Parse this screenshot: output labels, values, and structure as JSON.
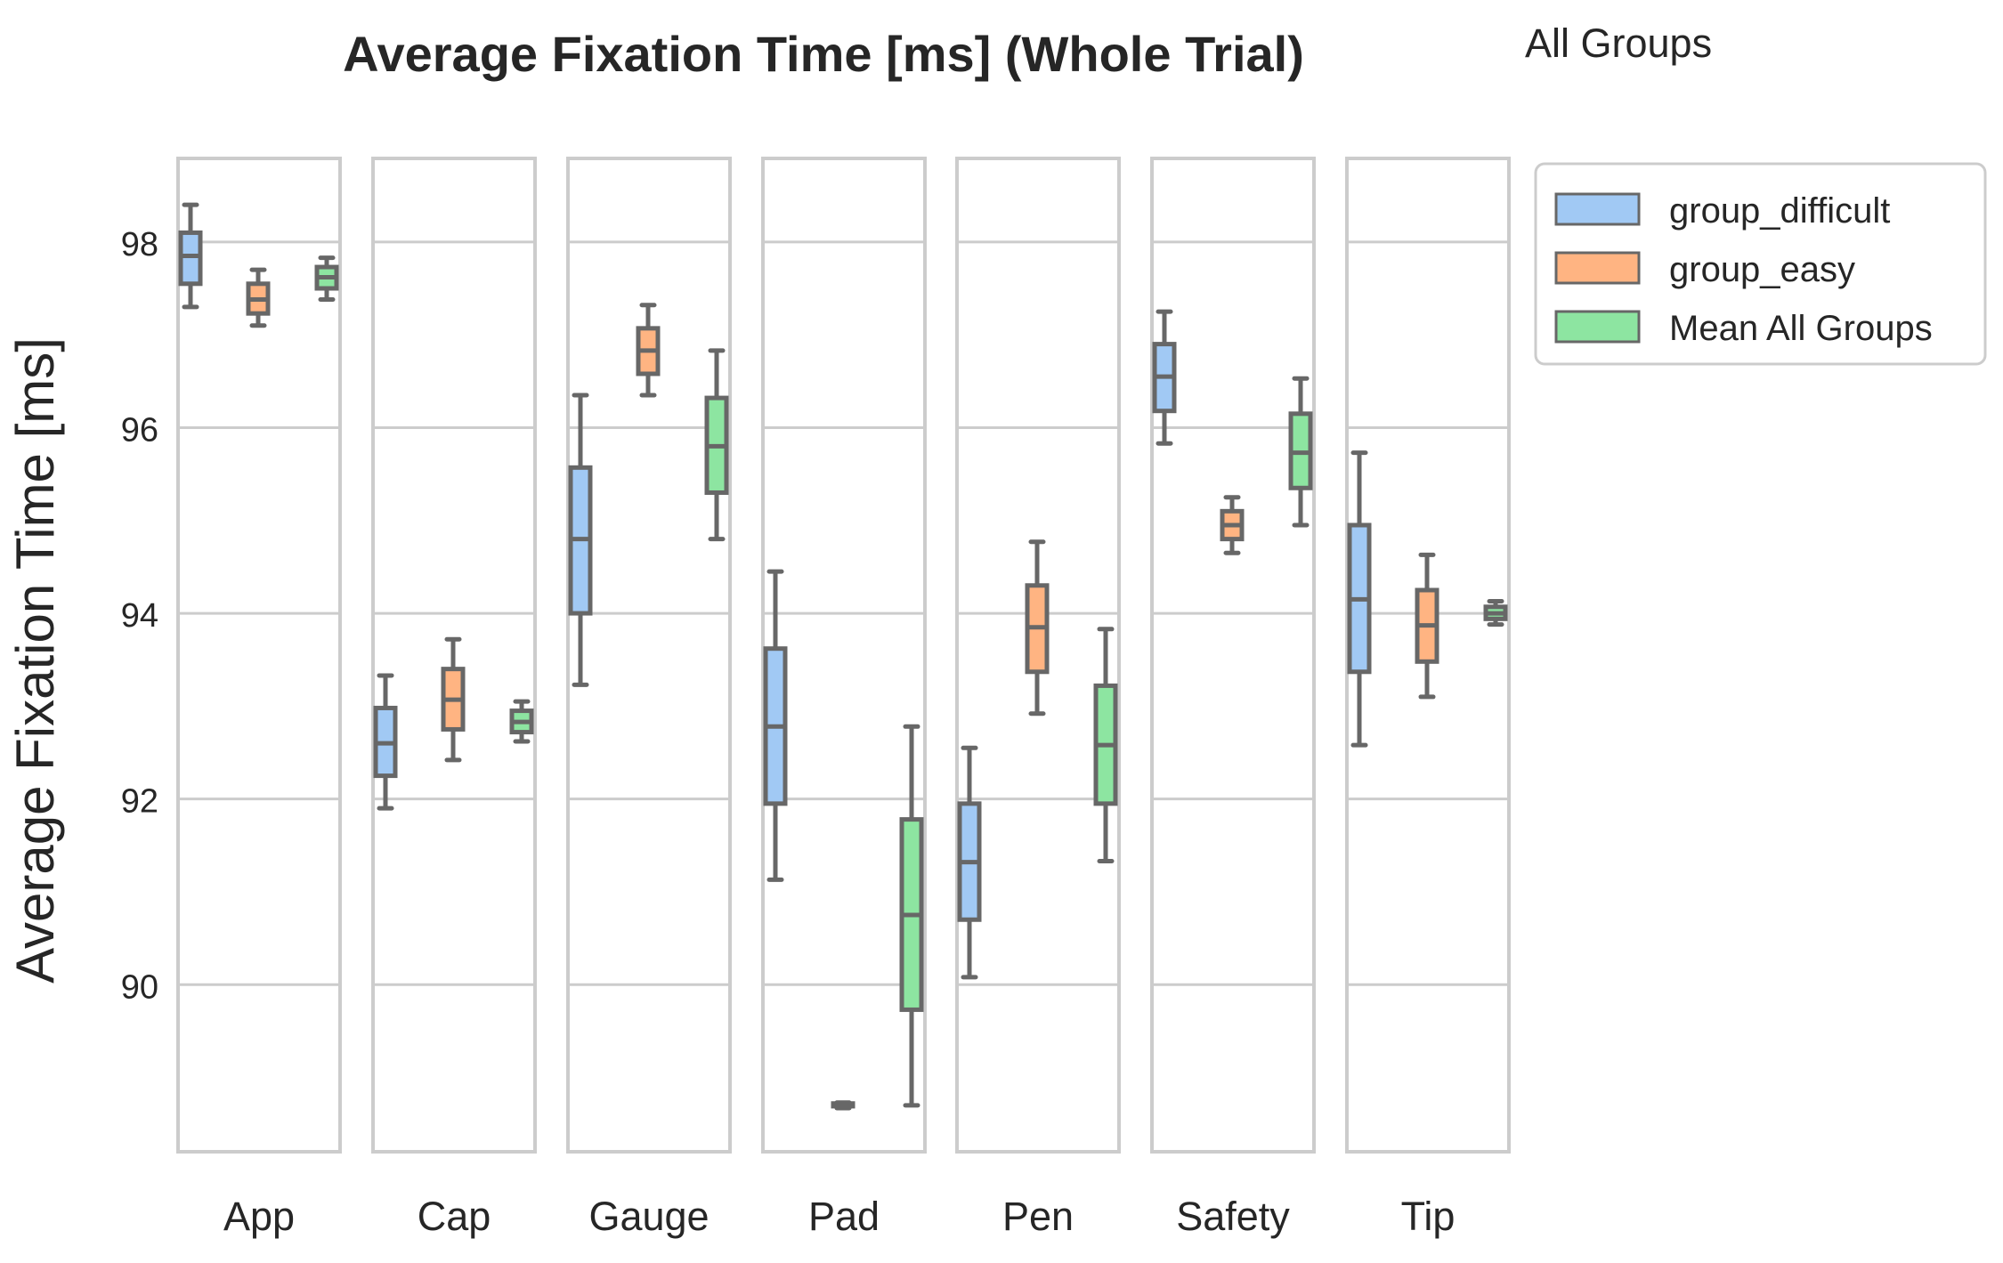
{
  "chart_data": {
    "type": "box",
    "title": "Average Fixation Time [ms] (Whole Trial)",
    "subtitle": "All Groups",
    "ylabel": "Average Fixation Time [ms]",
    "xlabel": "",
    "ylim": [
      88.2,
      98.9
    ],
    "yticks": [
      90,
      92,
      94,
      96,
      98
    ],
    "ytick_labels": [
      "90",
      "92",
      "94",
      "96",
      "98"
    ],
    "grid": true,
    "legend_position": "top-right",
    "facets": [
      "App",
      "Cap",
      "Gauge",
      "Pad",
      "Pen",
      "Safety",
      "Tip"
    ],
    "series": [
      {
        "name": "group_difficult",
        "color": "#a1c9f4",
        "boxes": [
          {
            "facet": "App",
            "whislo": 97.3,
            "q1": 97.55,
            "med": 97.85,
            "q3": 98.1,
            "whishi": 98.4
          },
          {
            "facet": "Cap",
            "whislo": 91.9,
            "q1": 92.25,
            "med": 92.6,
            "q3": 92.98,
            "whishi": 93.33
          },
          {
            "facet": "Gauge",
            "whislo": 93.23,
            "q1": 94.0,
            "med": 94.8,
            "q3": 95.57,
            "whishi": 96.35
          },
          {
            "facet": "Pad",
            "whislo": 91.13,
            "q1": 91.95,
            "med": 92.78,
            "q3": 93.62,
            "whishi": 94.45
          },
          {
            "facet": "Pen",
            "whislo": 90.08,
            "q1": 90.7,
            "med": 91.32,
            "q3": 91.95,
            "whishi": 92.55
          },
          {
            "facet": "Safety",
            "whislo": 95.83,
            "q1": 96.18,
            "med": 96.55,
            "q3": 96.9,
            "whishi": 97.25
          },
          {
            "facet": "Tip",
            "whislo": 92.58,
            "q1": 93.37,
            "med": 94.15,
            "q3": 94.95,
            "whishi": 95.73
          }
        ]
      },
      {
        "name": "group_easy",
        "color": "#ffb482",
        "boxes": [
          {
            "facet": "App",
            "whislo": 97.1,
            "q1": 97.23,
            "med": 97.38,
            "q3": 97.55,
            "whishi": 97.7
          },
          {
            "facet": "Cap",
            "whislo": 92.42,
            "q1": 92.75,
            "med": 93.07,
            "q3": 93.4,
            "whishi": 93.72
          },
          {
            "facet": "Gauge",
            "whislo": 96.35,
            "q1": 96.58,
            "med": 96.83,
            "q3": 97.07,
            "whishi": 97.32
          },
          {
            "facet": "Pad",
            "whislo": 88.67,
            "q1": 88.69,
            "med": 88.7,
            "q3": 88.72,
            "whishi": 88.73
          },
          {
            "facet": "Pen",
            "whislo": 92.92,
            "q1": 93.37,
            "med": 93.85,
            "q3": 94.3,
            "whishi": 94.77
          },
          {
            "facet": "Safety",
            "whislo": 94.65,
            "q1": 94.8,
            "med": 94.95,
            "q3": 95.1,
            "whishi": 95.25
          },
          {
            "facet": "Tip",
            "whislo": 93.1,
            "q1": 93.48,
            "med": 93.87,
            "q3": 94.25,
            "whishi": 94.63
          }
        ]
      },
      {
        "name": "Mean All Groups",
        "color": "#8de5a1",
        "boxes": [
          {
            "facet": "App",
            "whislo": 97.38,
            "q1": 97.5,
            "med": 97.62,
            "q3": 97.73,
            "whishi": 97.83
          },
          {
            "facet": "Cap",
            "whislo": 92.62,
            "q1": 92.72,
            "med": 92.83,
            "q3": 92.95,
            "whishi": 93.05
          },
          {
            "facet": "Gauge",
            "whislo": 94.8,
            "q1": 95.3,
            "med": 95.8,
            "q3": 96.32,
            "whishi": 96.83
          },
          {
            "facet": "Pad",
            "whislo": 88.7,
            "q1": 89.73,
            "med": 90.75,
            "q3": 91.78,
            "whishi": 92.78
          },
          {
            "facet": "Pen",
            "whislo": 91.33,
            "q1": 91.95,
            "med": 92.58,
            "q3": 93.22,
            "whishi": 93.83
          },
          {
            "facet": "Safety",
            "whislo": 94.95,
            "q1": 95.35,
            "med": 95.73,
            "q3": 96.15,
            "whishi": 96.53
          },
          {
            "facet": "Tip",
            "whislo": 93.88,
            "q1": 93.94,
            "med": 94.0,
            "q3": 94.07,
            "whishi": 94.13
          }
        ]
      }
    ]
  }
}
